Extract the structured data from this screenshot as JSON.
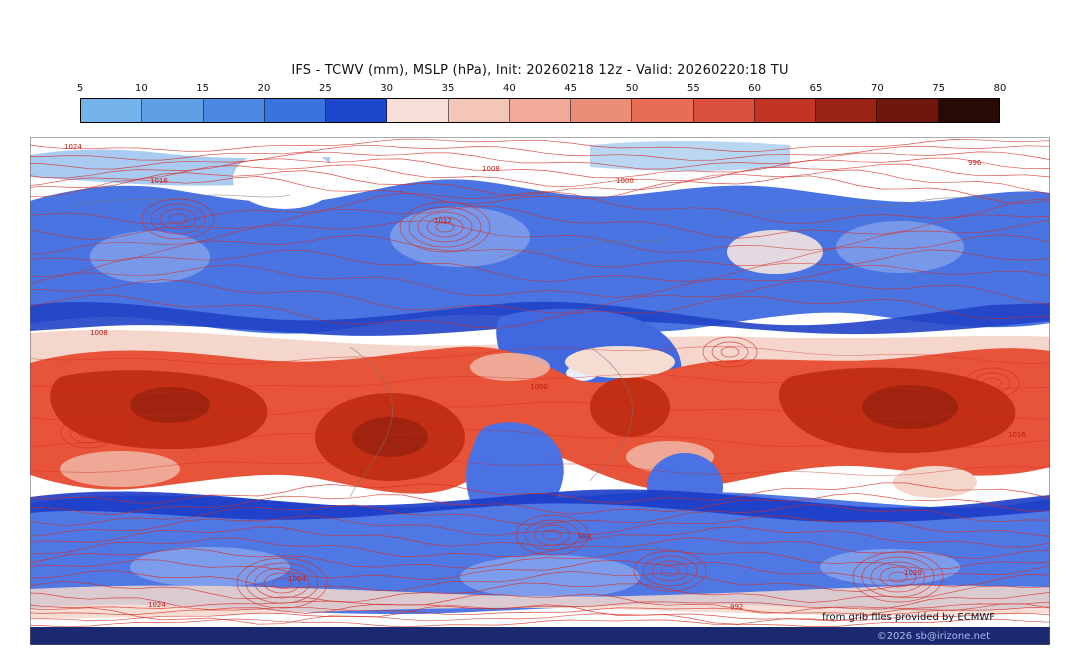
{
  "header": {
    "title": "IFS - TCWV (mm), MSLP (hPa), Init: 20260218 12z - Valid: 20260220:18 TU"
  },
  "colorbar": {
    "ticks": [
      "5",
      "10",
      "15",
      "20",
      "25",
      "30",
      "35",
      "40",
      "45",
      "50",
      "55",
      "60",
      "65",
      "70",
      "75",
      "80"
    ],
    "segment_colors": [
      "#74b4ea",
      "#5f9fe6",
      "#4b89e2",
      "#3a72de",
      "#1d48cc",
      "#f7ded7",
      "#f4c6b8",
      "#f0aa97",
      "#eb8e77",
      "#e56e55",
      "#d94f3b",
      "#c33523",
      "#9b2315",
      "#6f170d",
      "#290b05"
    ]
  },
  "map": {
    "attribution": "from grib files provided by ECMWF",
    "isobar_labels": [
      "1024",
      "1016",
      "1008",
      "1000",
      "996",
      "1012",
      "1004",
      "988",
      "1020",
      "992"
    ],
    "contour_color": "#d42a20",
    "footer_bar_color": "#1b2a70"
  },
  "footer": {
    "copyright": "©2026 sb@irizone.net"
  },
  "chart_data": {
    "type": "heatmap",
    "title": "IFS - TCWV (mm), MSLP (hPa), Init: 20260218 12z - Valid: 20260220:18 TU",
    "model": "IFS",
    "init": "20260218 12z",
    "valid": "20260220:18 TU",
    "fill_variable": "TCWV (mm)",
    "contour_variable": "MSLP (hPa)",
    "scale_ticks": [
      5,
      10,
      15,
      20,
      25,
      30,
      35,
      40,
      45,
      50,
      55,
      60,
      65,
      70,
      75,
      80
    ],
    "scale_colors": [
      "#74b4ea",
      "#5f9fe6",
      "#4b89e2",
      "#3a72de",
      "#1d48cc",
      "#f7ded7",
      "#f4c6b8",
      "#f0aa97",
      "#eb8e77",
      "#e56e55",
      "#d94f3b",
      "#c33523",
      "#9b2315",
      "#6f170d",
      "#290b05"
    ],
    "legend_position": "top"
  }
}
